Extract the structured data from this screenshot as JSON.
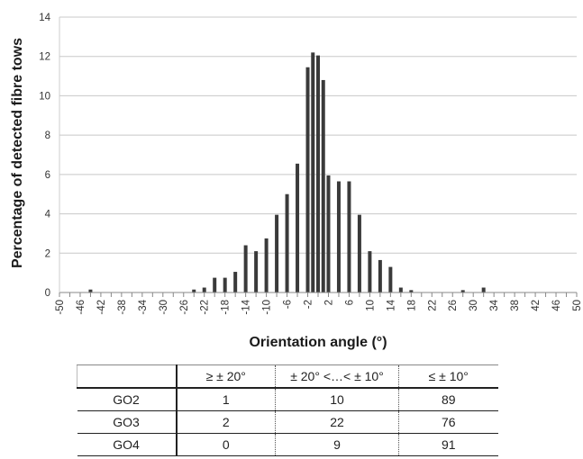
{
  "chart_data": {
    "type": "bar",
    "title": "",
    "xlabel": "Orientation angle (°)",
    "ylabel": "Percentage of detected fibre tows",
    "ylim": [
      0,
      14
    ],
    "yticks": [
      "0",
      "2",
      "4",
      "6",
      "8",
      "10",
      "12",
      "14"
    ],
    "xticks": [
      "-50",
      "-46",
      "-42",
      "-38",
      "-34",
      "-30",
      "-26",
      "-22",
      "-18",
      "-14",
      "-10",
      "-6",
      "-2",
      "2",
      "6",
      "10",
      "14",
      "18",
      "22",
      "26",
      "30",
      "34",
      "38",
      "42",
      "46",
      "50"
    ],
    "x": [
      -50,
      -48,
      -46,
      -44,
      -42,
      -40,
      -38,
      -36,
      -34,
      -32,
      -30,
      -28,
      -26,
      -24,
      -22,
      -20,
      -18,
      -16,
      -14,
      -12,
      -10,
      -8,
      -6,
      -4,
      -2,
      -1,
      0,
      1,
      2,
      4,
      6,
      8,
      10,
      12,
      14,
      16,
      18,
      20,
      22,
      24,
      26,
      28,
      30,
      32,
      34,
      36,
      38,
      40,
      42,
      44,
      46,
      48,
      50
    ],
    "values": [
      0,
      0,
      0,
      0.15,
      0,
      0,
      0,
      0,
      0,
      0,
      0,
      0,
      0,
      0.15,
      0.25,
      0.75,
      0.75,
      1.05,
      2.4,
      2.1,
      2.75,
      3.95,
      5.0,
      6.55,
      11.45,
      12.2,
      12.05,
      10.8,
      5.95,
      5.65,
      5.65,
      3.95,
      2.1,
      1.65,
      1.3,
      0.25,
      0.12,
      0,
      0,
      0,
      0,
      0.12,
      0,
      0.25,
      0,
      0,
      0,
      0,
      0,
      0,
      0,
      0,
      0
    ],
    "grid": true
  },
  "table": {
    "headers": [
      "",
      "≥ ± 20°",
      "± 20° <…< ± 10°",
      "≤ ± 10°"
    ],
    "rows": [
      {
        "label": "GO2",
        "cells": [
          "1",
          "10",
          "89"
        ]
      },
      {
        "label": "GO3",
        "cells": [
          "2",
          "22",
          "76"
        ]
      },
      {
        "label": "GO4",
        "cells": [
          "0",
          "9",
          "91"
        ]
      }
    ]
  }
}
